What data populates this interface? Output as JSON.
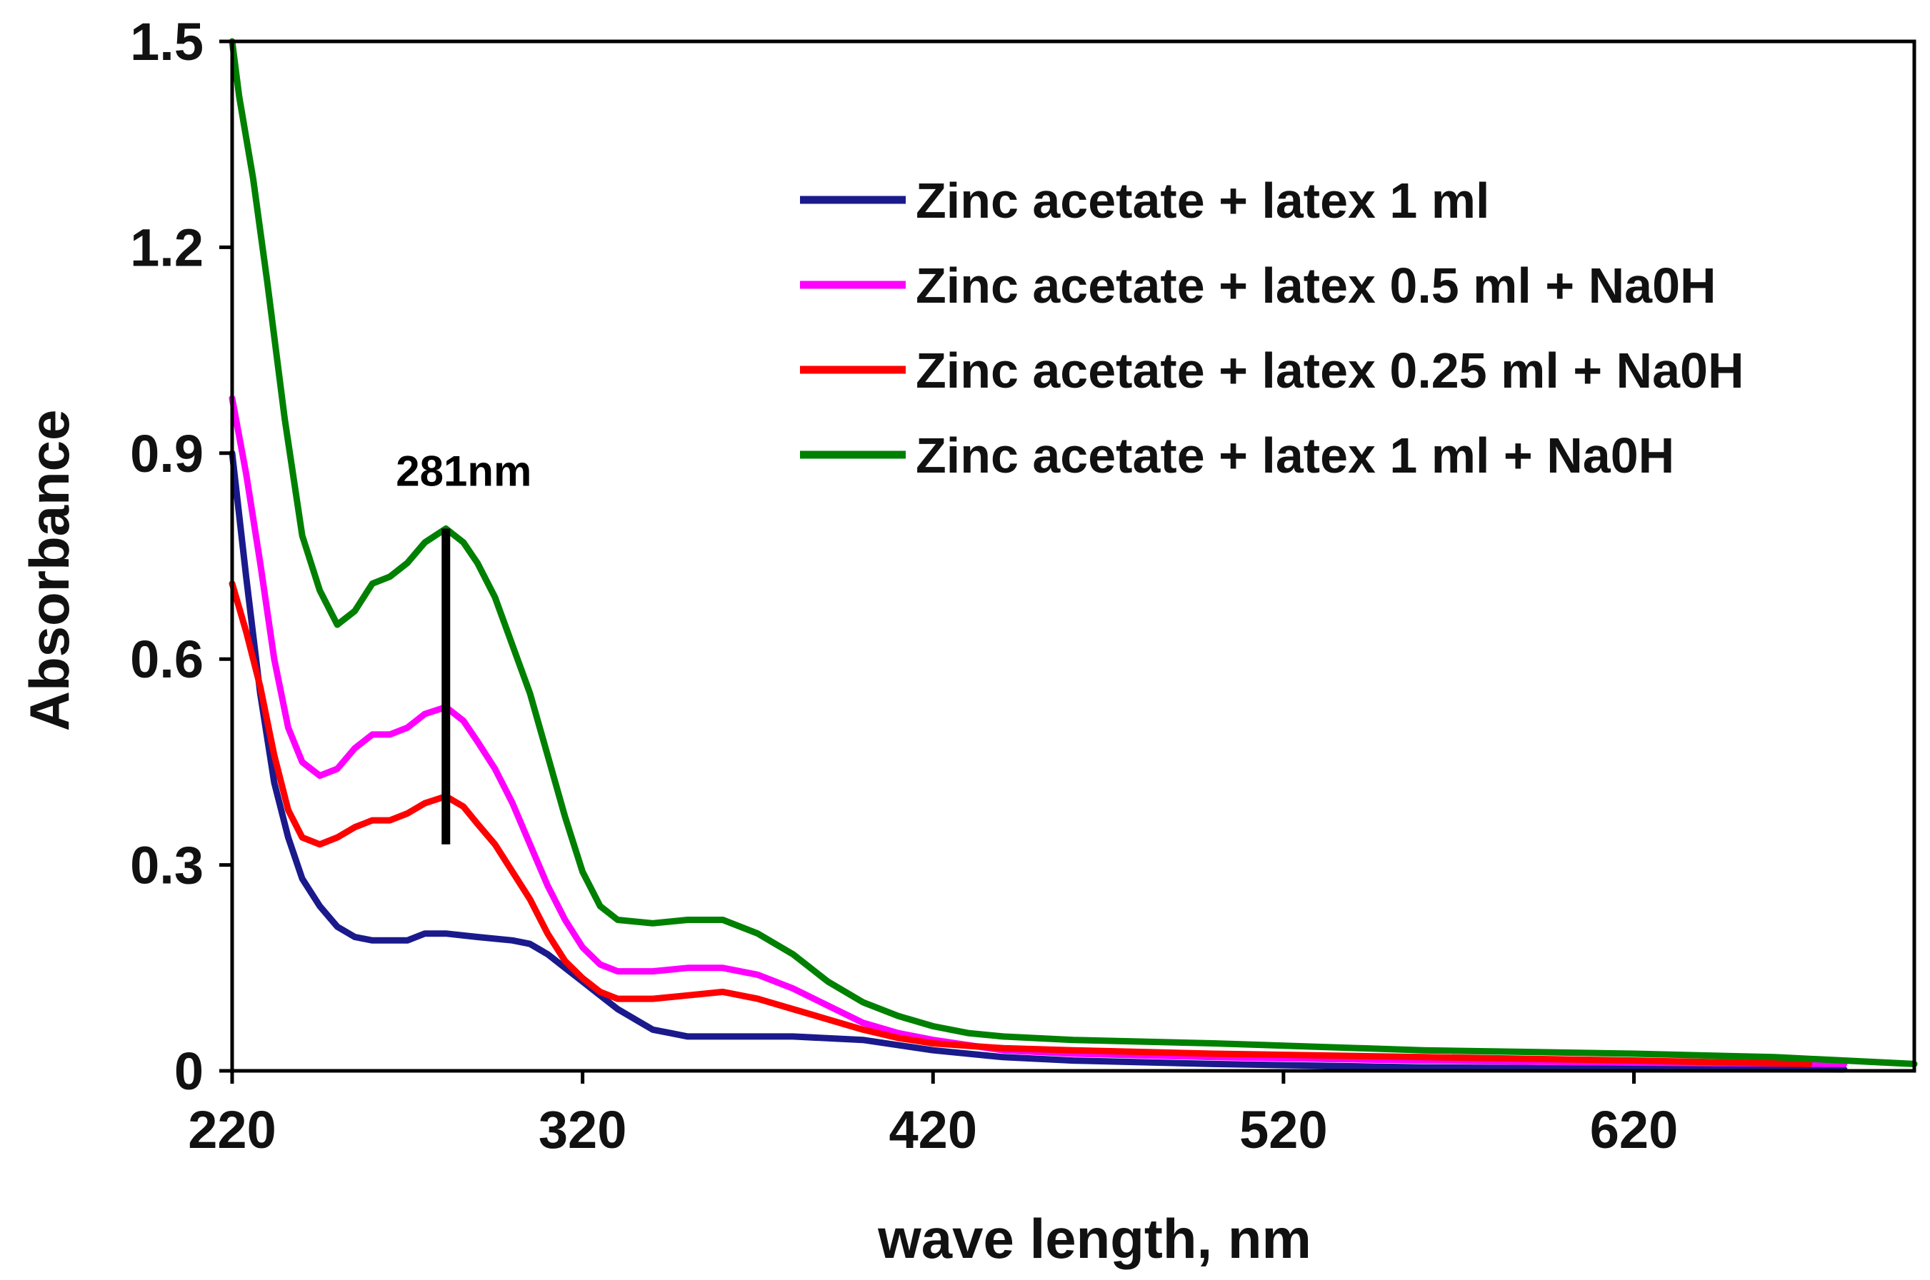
{
  "chart_data": {
    "type": "line",
    "title": "",
    "xlabel": "wave length, nm",
    "ylabel": "Absorbance",
    "xlim": [
      220,
      700
    ],
    "ylim": [
      0,
      1.5
    ],
    "xticks": [
      220,
      320,
      420,
      520,
      620
    ],
    "yticks": [
      0,
      0.3,
      0.6,
      0.9,
      1.2,
      1.5
    ],
    "ytick_labels": [
      "0",
      "0.3",
      "0.6",
      "0.9",
      "1.2",
      "1.5"
    ],
    "grid": false,
    "legend_position": "top-right",
    "annotation": {
      "text": "281nm",
      "x": 281,
      "y_from": 0.33,
      "y_to": 0.79
    },
    "series": [
      {
        "name": "Zinc acetate + latex 1 ml",
        "color": "#1a1a8c",
        "points": [
          [
            220,
            0.9
          ],
          [
            224,
            0.72
          ],
          [
            228,
            0.55
          ],
          [
            232,
            0.42
          ],
          [
            236,
            0.34
          ],
          [
            240,
            0.28
          ],
          [
            245,
            0.24
          ],
          [
            250,
            0.21
          ],
          [
            255,
            0.195
          ],
          [
            260,
            0.19
          ],
          [
            265,
            0.19
          ],
          [
            270,
            0.19
          ],
          [
            275,
            0.2
          ],
          [
            281,
            0.2
          ],
          [
            290,
            0.195
          ],
          [
            300,
            0.19
          ],
          [
            305,
            0.185
          ],
          [
            310,
            0.17
          ],
          [
            315,
            0.15
          ],
          [
            320,
            0.13
          ],
          [
            325,
            0.11
          ],
          [
            330,
            0.09
          ],
          [
            335,
            0.075
          ],
          [
            340,
            0.06
          ],
          [
            345,
            0.055
          ],
          [
            350,
            0.05
          ],
          [
            360,
            0.05
          ],
          [
            380,
            0.05
          ],
          [
            400,
            0.045
          ],
          [
            420,
            0.03
          ],
          [
            440,
            0.02
          ],
          [
            460,
            0.015
          ],
          [
            500,
            0.01
          ],
          [
            560,
            0.005
          ],
          [
            620,
            0.003
          ],
          [
            680,
            0.002
          ]
        ]
      },
      {
        "name": "Zinc acetate + latex 0.5 ml + Na0H",
        "color": "#ff00ff",
        "points": [
          [
            220,
            0.98
          ],
          [
            224,
            0.87
          ],
          [
            228,
            0.74
          ],
          [
            232,
            0.6
          ],
          [
            236,
            0.5
          ],
          [
            240,
            0.45
          ],
          [
            245,
            0.43
          ],
          [
            250,
            0.44
          ],
          [
            255,
            0.47
          ],
          [
            260,
            0.49
          ],
          [
            265,
            0.49
          ],
          [
            270,
            0.5
          ],
          [
            275,
            0.52
          ],
          [
            281,
            0.53
          ],
          [
            286,
            0.51
          ],
          [
            290,
            0.48
          ],
          [
            295,
            0.44
          ],
          [
            300,
            0.39
          ],
          [
            305,
            0.33
          ],
          [
            310,
            0.27
          ],
          [
            315,
            0.22
          ],
          [
            320,
            0.18
          ],
          [
            325,
            0.155
          ],
          [
            330,
            0.145
          ],
          [
            340,
            0.145
          ],
          [
            350,
            0.15
          ],
          [
            360,
            0.15
          ],
          [
            370,
            0.14
          ],
          [
            380,
            0.12
          ],
          [
            390,
            0.095
          ],
          [
            400,
            0.07
          ],
          [
            410,
            0.055
          ],
          [
            420,
            0.045
          ],
          [
            440,
            0.03
          ],
          [
            460,
            0.025
          ],
          [
            500,
            0.02
          ],
          [
            560,
            0.015
          ],
          [
            620,
            0.012
          ],
          [
            680,
            0.01
          ]
        ]
      },
      {
        "name": "Zinc acetate + latex 0.25 ml + Na0H",
        "color": "#ff0000",
        "points": [
          [
            220,
            0.71
          ],
          [
            224,
            0.64
          ],
          [
            228,
            0.56
          ],
          [
            232,
            0.46
          ],
          [
            236,
            0.38
          ],
          [
            240,
            0.34
          ],
          [
            245,
            0.33
          ],
          [
            250,
            0.34
          ],
          [
            255,
            0.355
          ],
          [
            260,
            0.365
          ],
          [
            265,
            0.365
          ],
          [
            270,
            0.375
          ],
          [
            275,
            0.39
          ],
          [
            281,
            0.4
          ],
          [
            286,
            0.385
          ],
          [
            290,
            0.36
          ],
          [
            295,
            0.33
          ],
          [
            300,
            0.29
          ],
          [
            305,
            0.25
          ],
          [
            310,
            0.2
          ],
          [
            315,
            0.16
          ],
          [
            320,
            0.135
          ],
          [
            325,
            0.115
          ],
          [
            330,
            0.105
          ],
          [
            340,
            0.105
          ],
          [
            350,
            0.11
          ],
          [
            360,
            0.115
          ],
          [
            370,
            0.105
          ],
          [
            380,
            0.09
          ],
          [
            390,
            0.075
          ],
          [
            400,
            0.06
          ],
          [
            410,
            0.048
          ],
          [
            420,
            0.04
          ],
          [
            440,
            0.033
          ],
          [
            460,
            0.03
          ],
          [
            500,
            0.025
          ],
          [
            560,
            0.02
          ],
          [
            620,
            0.015
          ],
          [
            670,
            0.01
          ]
        ]
      },
      {
        "name": "Zinc acetate + latex 1 ml + Na0H",
        "color": "#008000",
        "points": [
          [
            220,
            1.5
          ],
          [
            222,
            1.42
          ],
          [
            226,
            1.3
          ],
          [
            230,
            1.15
          ],
          [
            235,
            0.95
          ],
          [
            240,
            0.78
          ],
          [
            245,
            0.7
          ],
          [
            250,
            0.65
          ],
          [
            255,
            0.67
          ],
          [
            260,
            0.71
          ],
          [
            265,
            0.72
          ],
          [
            270,
            0.74
          ],
          [
            275,
            0.77
          ],
          [
            281,
            0.79
          ],
          [
            286,
            0.77
          ],
          [
            290,
            0.74
          ],
          [
            295,
            0.69
          ],
          [
            300,
            0.62
          ],
          [
            305,
            0.55
          ],
          [
            310,
            0.46
          ],
          [
            315,
            0.37
          ],
          [
            320,
            0.29
          ],
          [
            325,
            0.24
          ],
          [
            330,
            0.22
          ],
          [
            340,
            0.215
          ],
          [
            350,
            0.22
          ],
          [
            360,
            0.22
          ],
          [
            370,
            0.2
          ],
          [
            380,
            0.17
          ],
          [
            390,
            0.13
          ],
          [
            400,
            0.1
          ],
          [
            410,
            0.08
          ],
          [
            420,
            0.065
          ],
          [
            430,
            0.055
          ],
          [
            440,
            0.05
          ],
          [
            460,
            0.045
          ],
          [
            500,
            0.04
          ],
          [
            560,
            0.03
          ],
          [
            620,
            0.025
          ],
          [
            660,
            0.02
          ],
          [
            700,
            0.01
          ]
        ]
      }
    ]
  }
}
